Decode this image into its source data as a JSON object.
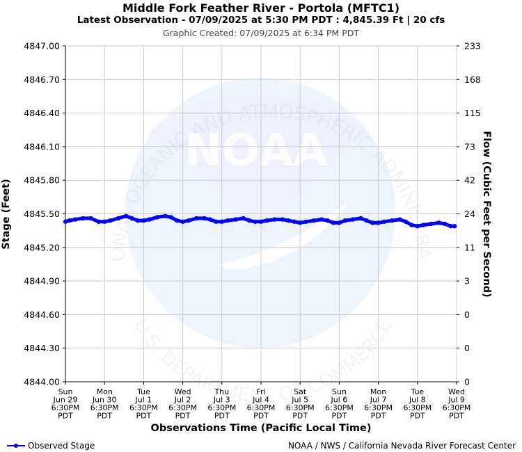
{
  "header": {
    "title": "Middle Fork Feather River - Portola (MFTC1)",
    "subtitle": "Latest Observation - 07/09/2025 at 5:30 PM PDT : 4,845.39 Ft | 20 cfs",
    "created": "Graphic Created: 07/09/2025 at 6:34 PM PDT"
  },
  "watermark": {
    "arc_top": "NATIONAL OCEANIC AND ATMOSPHERIC ADMINISTRATION",
    "arc_bottom": "U.S. DEPARTMENT OF COMMERCE",
    "logo_text": "NOAA"
  },
  "footer": {
    "legend_label": "Observed Stage",
    "credit": "NOAA / NWS / California Nevada River Forecast Center"
  },
  "colors": {
    "series": "#0000ff",
    "grid": "#cccccc",
    "watermark": "#1e73d2"
  },
  "chart_data": {
    "type": "line",
    "title": "Middle Fork Feather River - Portola (MFTC1)",
    "xlabel": "Observations Time (Pacific Local Time)",
    "ylabel": "Stage (Feet)",
    "y2label": "Flow (Cubic Feet per Second)",
    "ylim": [
      4844.0,
      4847.0
    ],
    "y_ticks": [
      "4844.00",
      "4844.30",
      "4844.60",
      "4844.90",
      "4845.20",
      "4845.50",
      "4845.80",
      "4846.10",
      "4846.40",
      "4846.70",
      "4847.00"
    ],
    "y2_ticks": [
      "0",
      "0",
      "0",
      "3",
      "11",
      "24",
      "42",
      "73",
      "115",
      "168",
      "233"
    ],
    "x_ticks": [
      {
        "day": "Sun",
        "date": "Jun 29",
        "time": "6:30PM",
        "tz": "PDT"
      },
      {
        "day": "Mon",
        "date": "Jun 30",
        "time": "6:30PM",
        "tz": "PDT"
      },
      {
        "day": "Tue",
        "date": "Jul 1",
        "time": "6:30PM",
        "tz": "PDT"
      },
      {
        "day": "Wed",
        "date": "Jul 2",
        "time": "6:30PM",
        "tz": "PDT"
      },
      {
        "day": "Thu",
        "date": "Jul 3",
        "time": "6:30PM",
        "tz": "PDT"
      },
      {
        "day": "Fri",
        "date": "Jul 4",
        "time": "6:30PM",
        "tz": "PDT"
      },
      {
        "day": "Sat",
        "date": "Jul 5",
        "time": "6:30PM",
        "tz": "PDT"
      },
      {
        "day": "Sun",
        "date": "Jul 6",
        "time": "6:30PM",
        "tz": "PDT"
      },
      {
        "day": "Mon",
        "date": "Jul 7",
        "time": "6:30PM",
        "tz": "PDT"
      },
      {
        "day": "Tue",
        "date": "Jul 8",
        "time": "6:30PM",
        "tz": "PDT"
      },
      {
        "day": "Wed",
        "date": "Jul 9",
        "time": "6:30PM",
        "tz": "PDT"
      }
    ],
    "xlim_days": [
      0,
      10
    ],
    "grid": true,
    "legend": "bottom-left",
    "series": [
      {
        "name": "Observed Stage",
        "x": [
          0.0,
          0.1,
          0.25,
          0.45,
          0.65,
          0.85,
          1.0,
          1.15,
          1.35,
          1.55,
          1.7,
          1.85,
          2.0,
          2.15,
          2.35,
          2.55,
          2.7,
          2.85,
          3.0,
          3.15,
          3.35,
          3.55,
          3.7,
          3.85,
          4.0,
          4.15,
          4.35,
          4.55,
          4.7,
          4.85,
          5.0,
          5.15,
          5.35,
          5.55,
          5.7,
          5.85,
          6.0,
          6.15,
          6.35,
          6.55,
          6.7,
          6.85,
          7.0,
          7.15,
          7.35,
          7.55,
          7.7,
          7.85,
          8.0,
          8.15,
          8.35,
          8.55,
          8.7,
          8.85,
          9.0,
          9.15,
          9.35,
          9.55,
          9.7,
          9.85,
          9.95
        ],
        "y": [
          4845.43,
          4845.44,
          4845.45,
          4845.46,
          4845.46,
          4845.43,
          4845.43,
          4845.44,
          4845.46,
          4845.48,
          4845.46,
          4845.44,
          4845.44,
          4845.45,
          4845.47,
          4845.48,
          4845.47,
          4845.44,
          4845.43,
          4845.44,
          4845.46,
          4845.46,
          4845.45,
          4845.43,
          4845.43,
          4845.44,
          4845.45,
          4845.46,
          4845.44,
          4845.43,
          4845.43,
          4845.44,
          4845.45,
          4845.45,
          4845.44,
          4845.43,
          4845.42,
          4845.43,
          4845.44,
          4845.45,
          4845.44,
          4845.42,
          4845.42,
          4845.44,
          4845.45,
          4845.46,
          4845.44,
          4845.42,
          4845.42,
          4845.43,
          4845.44,
          4845.45,
          4845.43,
          4845.4,
          4845.39,
          4845.4,
          4845.41,
          4845.42,
          4845.41,
          4845.39,
          4845.39
        ]
      }
    ]
  }
}
